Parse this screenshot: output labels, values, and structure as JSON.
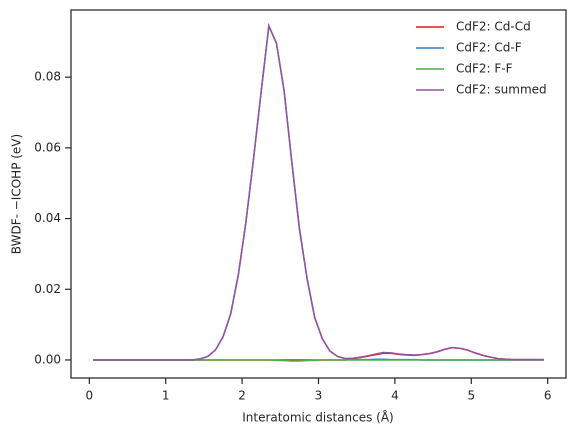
{
  "chart_data": {
    "type": "line",
    "xlabel": "Interatomic distances (Å)",
    "ylabel": "BWDF- −ICOHP (eV)",
    "x": [
      0.05,
      0.15,
      0.25,
      0.35,
      0.45,
      0.55,
      0.65,
      0.75,
      0.85,
      0.95,
      1.05,
      1.15,
      1.25,
      1.35,
      1.45,
      1.55,
      1.65,
      1.75,
      1.85,
      1.95,
      2.05,
      2.15,
      2.25,
      2.35,
      2.45,
      2.55,
      2.65,
      2.75,
      2.85,
      2.95,
      3.05,
      3.15,
      3.25,
      3.35,
      3.45,
      3.55,
      3.65,
      3.75,
      3.85,
      3.95,
      4.05,
      4.15,
      4.25,
      4.35,
      4.45,
      4.55,
      4.65,
      4.75,
      4.85,
      4.95,
      5.05,
      5.15,
      5.25,
      5.35,
      5.45,
      5.55,
      5.65,
      5.75,
      5.85,
      5.95
    ],
    "series": [
      {
        "name": "CdF2: Cd-Cd",
        "color": "#e41a1c",
        "values": [
          0,
          0,
          0,
          0,
          0,
          0,
          0,
          0,
          0,
          0,
          0,
          0,
          0,
          0,
          0,
          0,
          0,
          0,
          0,
          0,
          0,
          0,
          0,
          0,
          0,
          0,
          0,
          0,
          0,
          0,
          0,
          0,
          0,
          0,
          0.0004,
          0.0007,
          0.0011,
          0.0015,
          0.0019,
          0.0019,
          0.0016,
          0.0014,
          0.0013,
          0.0015,
          0.0018,
          0.0023,
          0.003,
          0.0035,
          0.0033,
          0.0028,
          0.002,
          0.0013,
          0.0008,
          0.0004,
          0.0002,
          0.0001,
          0.0001,
          0.0001,
          0.0001,
          0.0001
        ]
      },
      {
        "name": "CdF2: Cd-F",
        "color": "#377eb8",
        "values": [
          0,
          0,
          0,
          0,
          0,
          0,
          0,
          0,
          0,
          0,
          0,
          0,
          0,
          0,
          0.0003,
          0.001,
          0.0028,
          0.0065,
          0.013,
          0.024,
          0.039,
          0.057,
          0.076,
          0.0945,
          0.0896,
          0.0762,
          0.0563,
          0.0373,
          0.0232,
          0.0121,
          0.006,
          0.0025,
          0.001,
          0.0004,
          0.0001,
          0.0001,
          0.0001,
          0.0002,
          0.0002,
          0.0001,
          0.0001,
          0.0001,
          0.0001,
          0,
          0,
          0,
          0,
          0,
          0,
          0,
          0,
          0,
          0,
          0,
          0,
          0,
          0,
          0,
          0,
          0
        ]
      },
      {
        "name": "CdF2: F-F",
        "color": "#4daf4a",
        "values": [
          0,
          0,
          0,
          0,
          0,
          0,
          0,
          0,
          0,
          0,
          0,
          0,
          0,
          0,
          0,
          0,
          0,
          0,
          0,
          0,
          0,
          0,
          0,
          0,
          -0.0001,
          -0.0002,
          -0.0003,
          -0.0003,
          -0.0002,
          -0.0001,
          0,
          0,
          0,
          0,
          0,
          0,
          0,
          0,
          0,
          0,
          0,
          0,
          0,
          0,
          0,
          0,
          0,
          0,
          0,
          0,
          0,
          0,
          0,
          0,
          0,
          0,
          0,
          0,
          0,
          0
        ]
      },
      {
        "name": "CdF2: summed",
        "color": "#984ea3",
        "values": [
          0,
          0,
          0,
          0,
          0,
          0,
          0,
          0,
          0,
          0,
          0,
          0,
          0,
          0,
          0.0003,
          0.001,
          0.0028,
          0.0065,
          0.013,
          0.024,
          0.039,
          0.057,
          0.076,
          0.0945,
          0.0895,
          0.076,
          0.056,
          0.037,
          0.023,
          0.012,
          0.006,
          0.0025,
          0.001,
          0.0004,
          0.0005,
          0.0008,
          0.0012,
          0.0017,
          0.0021,
          0.002,
          0.0017,
          0.0015,
          0.0014,
          0.0015,
          0.0018,
          0.0023,
          0.003,
          0.0035,
          0.0033,
          0.0028,
          0.002,
          0.0013,
          0.0008,
          0.0004,
          0.0002,
          0.0001,
          0.0001,
          0.0001,
          0.0001,
          0.0001
        ]
      }
    ],
    "xlim": [
      -0.24,
      6.24
    ],
    "xticks": [
      0,
      1,
      2,
      3,
      4,
      5,
      6
    ],
    "ylim": [
      -0.0051,
      0.099
    ],
    "yticks": [
      {
        "value": 0,
        "label": "0.00"
      },
      {
        "value": 0.02,
        "label": "0.02"
      },
      {
        "value": 0.04,
        "label": "0.04"
      },
      {
        "value": 0.06,
        "label": "0.06"
      },
      {
        "value": 0.08,
        "label": "0.08"
      }
    ],
    "legend": "upper right",
    "grid": false
  }
}
